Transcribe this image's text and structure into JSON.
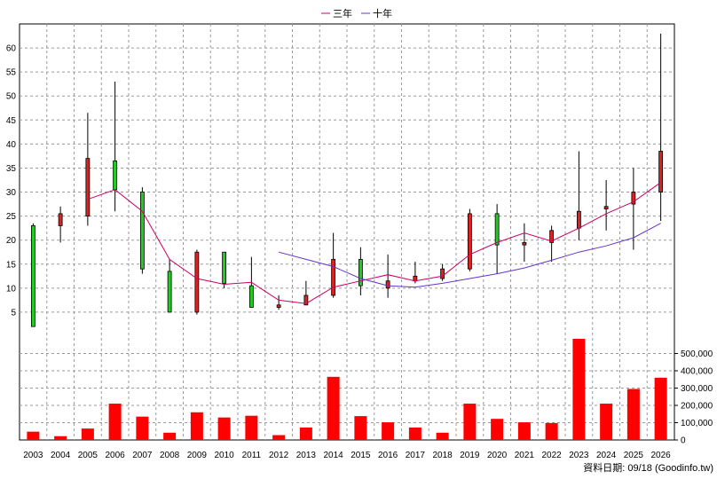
{
  "chart_data": [
    {
      "type": "candlestick",
      "categories": [
        "2003",
        "2004",
        "2005",
        "2006",
        "2007",
        "2008",
        "2009",
        "2010",
        "2011",
        "2012",
        "2013",
        "2014",
        "2015",
        "2016",
        "2017",
        "2018",
        "2019",
        "2020",
        "2021",
        "2022",
        "2023",
        "2024",
        "2025",
        "2026"
      ],
      "ohlc": [
        {
          "open": 23.0,
          "high": 23.5,
          "low": 2.0,
          "close": 2.0
        },
        {
          "open": 23.0,
          "high": 27.0,
          "low": 19.5,
          "close": 25.5
        },
        {
          "open": 25.0,
          "high": 46.5,
          "low": 23.0,
          "close": 37.0
        },
        {
          "open": 36.5,
          "high": 53.0,
          "low": 26.0,
          "close": 30.5
        },
        {
          "open": 30.0,
          "high": 31.0,
          "low": 13.0,
          "close": 14.0
        },
        {
          "open": 13.5,
          "high": 16.0,
          "low": 5.0,
          "close": 5.0
        },
        {
          "open": 5.0,
          "high": 18.0,
          "low": 4.5,
          "close": 17.5
        },
        {
          "open": 17.5,
          "high": 17.5,
          "low": 10.0,
          "close": 11.0
        },
        {
          "open": 10.5,
          "high": 16.5,
          "low": 6.0,
          "close": 6.0
        },
        {
          "open": 6.0,
          "high": 8.5,
          "low": 5.5,
          "close": 6.5
        },
        {
          "open": 6.5,
          "high": 11.5,
          "low": 6.5,
          "close": 8.5
        },
        {
          "open": 8.5,
          "high": 21.5,
          "low": 8.0,
          "close": 16.0
        },
        {
          "open": 16.0,
          "high": 18.5,
          "low": 8.5,
          "close": 10.5
        },
        {
          "open": 10.0,
          "high": 17.0,
          "low": 8.0,
          "close": 11.5
        },
        {
          "open": 11.5,
          "high": 15.5,
          "low": 11.0,
          "close": 12.5
        },
        {
          "open": 12.0,
          "high": 15.0,
          "low": 11.5,
          "close": 14.0
        },
        {
          "open": 14.0,
          "high": 26.5,
          "low": 13.5,
          "close": 25.5
        },
        {
          "open": 25.5,
          "high": 27.5,
          "low": 13.0,
          "close": 19.0
        },
        {
          "open": 19.0,
          "high": 23.5,
          "low": 15.5,
          "close": 19.5
        },
        {
          "open": 19.5,
          "high": 23.0,
          "low": 15.5,
          "close": 22.0
        },
        {
          "open": 22.5,
          "high": 38.5,
          "low": 20.0,
          "close": 26.0
        },
        {
          "open": 26.5,
          "high": 32.5,
          "low": 22.0,
          "close": 27.0
        },
        {
          "open": 27.5,
          "high": 35.0,
          "low": 18.0,
          "close": 30.0
        },
        {
          "open": 30.0,
          "high": 63.0,
          "low": 24.0,
          "close": 38.5
        }
      ],
      "series": [
        {
          "name": "三年",
          "values": [
            null,
            null,
            28.5,
            30.5,
            26.0,
            16.0,
            12.0,
            10.8,
            11.2,
            7.5,
            6.8,
            10.2,
            11.5,
            12.8,
            11.5,
            12.5,
            17.0,
            19.5,
            21.5,
            19.8,
            22.5,
            25.5,
            28.0,
            32.0
          ]
        },
        {
          "name": "十年",
          "values": [
            null,
            null,
            null,
            null,
            null,
            null,
            null,
            null,
            null,
            17.5,
            16.0,
            14.5,
            12.0,
            10.5,
            10.2,
            11.0,
            12.0,
            13.0,
            14.2,
            15.8,
            17.5,
            18.8,
            20.5,
            23.5
          ]
        }
      ],
      "ylim": [
        0,
        65
      ],
      "y_ticks": [
        "5",
        "10",
        "15",
        "20",
        "25",
        "30",
        "35",
        "40",
        "45",
        "50",
        "55",
        "60"
      ],
      "y_axis_side": "left",
      "up_color": "#dd2222",
      "down_color": "#22cc22",
      "line_colors": [
        "#cc0066",
        "#6633cc"
      ],
      "legend_position": "top-center",
      "grid": true
    },
    {
      "type": "bar",
      "categories": [
        "2003",
        "2004",
        "2005",
        "2006",
        "2007",
        "2008",
        "2009",
        "2010",
        "2011",
        "2012",
        "2013",
        "2014",
        "2015",
        "2016",
        "2017",
        "2018",
        "2019",
        "2020",
        "2021",
        "2022",
        "2023",
        "2024",
        "2025",
        "2026"
      ],
      "values": [
        48000,
        22000,
        66000,
        210000,
        135000,
        42000,
        160000,
        130000,
        140000,
        28000,
        72000,
        365000,
        138000,
        102000,
        72000,
        42000,
        210000,
        122000,
        102000,
        98000,
        585000,
        210000,
        295000,
        360000
      ],
      "ylim": [
        0,
        600000
      ],
      "y_ticks": [
        "0",
        "100,000",
        "200,000",
        "300,000",
        "400,000",
        "500,000"
      ],
      "y_axis_side": "right",
      "bar_color": "#ff0000",
      "grid": true
    }
  ],
  "source_label": "資料日期: 09/18  (Goodinfo.tw)"
}
